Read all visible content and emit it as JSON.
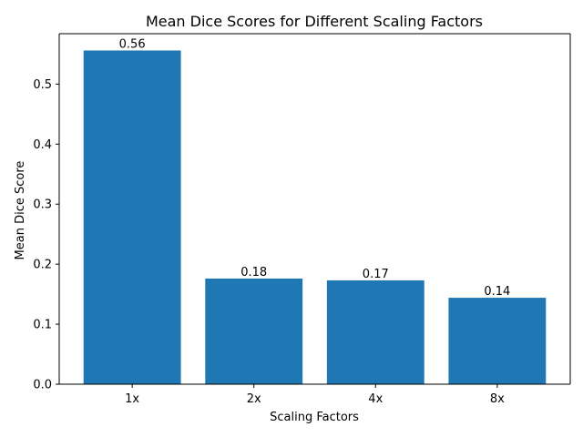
{
  "chart_data": {
    "type": "bar",
    "title": "Mean Dice Scores for Different Scaling Factors",
    "xlabel": "Scaling Factors",
    "ylabel": "Mean Dice Score",
    "categories": [
      "1x",
      "2x",
      "4x",
      "8x"
    ],
    "values": [
      0.556,
      0.176,
      0.173,
      0.144
    ],
    "value_labels": [
      "0.56",
      "0.18",
      "0.17",
      "0.14"
    ],
    "ylim": [
      0,
      0.584
    ],
    "yticks": [
      0.0,
      0.1,
      0.2,
      0.3,
      0.4,
      0.5
    ],
    "ytick_labels": [
      "0.0",
      "0.1",
      "0.2",
      "0.3",
      "0.4",
      "0.5"
    ],
    "grid": false,
    "bar_color": "#1f77b4"
  }
}
